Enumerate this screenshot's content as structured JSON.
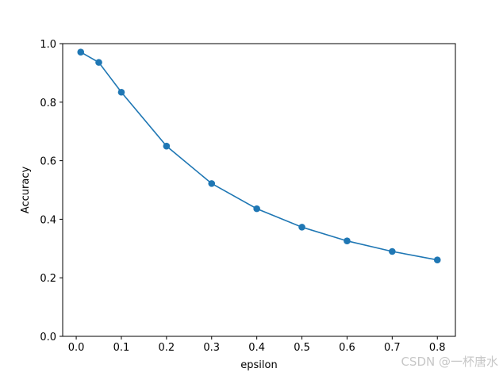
{
  "chart_data": {
    "type": "line",
    "xlabel": "epsilon",
    "ylabel": "Accuracy",
    "xlim": [
      -0.03,
      0.84
    ],
    "ylim": [
      0.0,
      1.0
    ],
    "x_ticks": [
      "0.0",
      "0.1",
      "0.2",
      "0.3",
      "0.4",
      "0.5",
      "0.6",
      "0.7",
      "0.8"
    ],
    "y_ticks": [
      "0.0",
      "0.2",
      "0.4",
      "0.6",
      "0.8",
      "1.0"
    ],
    "grid": false,
    "series": [
      {
        "color": "#1f77b4",
        "marker": "circle",
        "x": [
          0.01,
          0.05,
          0.1,
          0.2,
          0.3,
          0.4,
          0.5,
          0.6,
          0.7,
          0.8
        ],
        "values": [
          0.971,
          0.936,
          0.834,
          0.65,
          0.522,
          0.436,
          0.373,
          0.326,
          0.29,
          0.261
        ]
      }
    ]
  },
  "watermark": "CSDN @一杯唐水"
}
